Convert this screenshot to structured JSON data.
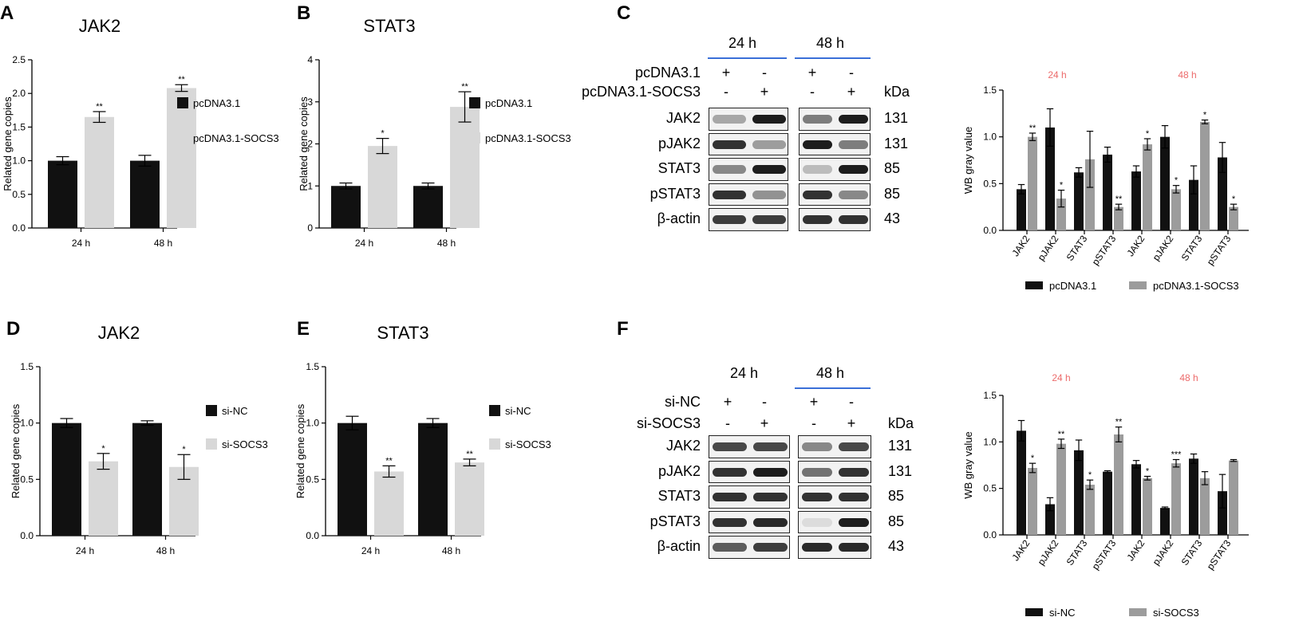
{
  "colors": {
    "black_bar": "#111111",
    "light_bar": "#d8d8d8",
    "wb_gray_bar": "#9c9c9c",
    "header_red": "#ec6b6b",
    "time_line": "#3a6fd8"
  },
  "panels": {
    "A": {
      "label": "A",
      "title": "JAK2",
      "ylabel": "Related gene copies",
      "yticks": [
        "0.0",
        "0.5",
        "1.0",
        "1.5",
        "2.0",
        "2.5"
      ],
      "ylim": [
        0,
        2.5
      ],
      "categories": [
        "24 h",
        "48 h"
      ],
      "legend": [
        "pcDNA3.1",
        "pcDNA3.1-SOCS3"
      ]
    },
    "B": {
      "label": "B",
      "title": "STAT3",
      "ylabel": "Related gene copies",
      "yticks": [
        "0",
        "1",
        "2",
        "3",
        "4"
      ],
      "ylim": [
        0,
        4
      ],
      "categories": [
        "24 h",
        "48 h"
      ],
      "legend": [
        "pcDNA3.1",
        "pcDNA3.1-SOCS3"
      ]
    },
    "D": {
      "label": "D",
      "title": "JAK2",
      "ylabel": "Related gene copies",
      "yticks": [
        "0.0",
        "0.5",
        "1.0",
        "1.5"
      ],
      "ylim": [
        0,
        1.5
      ],
      "categories": [
        "24 h",
        "48 h"
      ],
      "legend": [
        "si-NC",
        "si-SOCS3"
      ]
    },
    "E": {
      "label": "E",
      "title": "STAT3",
      "ylabel": "Related gene copies",
      "yticks": [
        "0.0",
        "0.5",
        "1.0",
        "1.5"
      ],
      "ylim": [
        0,
        1.5
      ],
      "categories": [
        "24 h",
        "48 h"
      ],
      "legend": [
        "si-NC",
        "si-SOCS3"
      ]
    },
    "C": {
      "label": "C",
      "ylabel": "WB gray value",
      "yticks": [
        "0.0",
        "0.5",
        "1.0",
        "1.5"
      ],
      "ylim": [
        0,
        1.5
      ],
      "header": [
        "24 h",
        "48 h"
      ],
      "categories": [
        "JAK2",
        "pJAK2",
        "STAT3",
        "pSTAT3",
        "JAK2",
        "pJAK2",
        "STAT3",
        "pSTAT3"
      ],
      "legend": [
        "pcDNA3.1",
        "pcDNA3.1-SOCS3"
      ]
    },
    "F": {
      "label": "F",
      "ylabel": "WB gray value",
      "yticks": [
        "0.0",
        "0.5",
        "1.0",
        "1.5"
      ],
      "ylim": [
        0,
        1.5
      ],
      "header": [
        "24 h",
        "48 h"
      ],
      "categories": [
        "JAK2",
        "pJAK2",
        "STAT3",
        "pSTAT3",
        "JAK2",
        "pJAK2",
        "STAT3",
        "pSTAT3"
      ],
      "legend": [
        "si-NC",
        "si-SOCS3"
      ]
    }
  },
  "chart_data": [
    {
      "panel": "A",
      "type": "bar",
      "title": "JAK2",
      "ylabel": "Related gene copies",
      "ylim": [
        0,
        2.5
      ],
      "categories": [
        "24 h",
        "48 h"
      ],
      "series": [
        {
          "name": "pcDNA3.1",
          "values": [
            1.0,
            1.0
          ],
          "errors": [
            0.06,
            0.08
          ]
        },
        {
          "name": "pcDNA3.1-SOCS3",
          "values": [
            1.65,
            2.08
          ],
          "errors": [
            0.08,
            0.05
          ]
        }
      ],
      "annotations": [
        [
          "",
          "**"
        ],
        [
          "",
          "**"
        ]
      ]
    },
    {
      "panel": "B",
      "type": "bar",
      "title": "STAT3",
      "ylabel": "Related gene copies",
      "ylim": [
        0,
        4
      ],
      "categories": [
        "24 h",
        "48 h"
      ],
      "series": [
        {
          "name": "pcDNA3.1",
          "values": [
            1.0,
            1.0
          ],
          "errors": [
            0.07,
            0.07
          ]
        },
        {
          "name": "pcDNA3.1-SOCS3",
          "values": [
            1.95,
            2.88
          ],
          "errors": [
            0.18,
            0.36
          ]
        }
      ],
      "annotations": [
        [
          "",
          "*"
        ],
        [
          "",
          "**"
        ]
      ]
    },
    {
      "panel": "C",
      "type": "bar",
      "ylabel": "WB gray value",
      "ylim": [
        0,
        1.5
      ],
      "categories": [
        "JAK2",
        "pJAK2",
        "STAT3",
        "pSTAT3",
        "JAK2",
        "pJAK2",
        "STAT3",
        "pSTAT3"
      ],
      "series": [
        {
          "name": "pcDNA3.1",
          "values": [
            0.44,
            1.1,
            0.62,
            0.81,
            0.63,
            1.0,
            0.54,
            0.78
          ],
          "errors": [
            0.05,
            0.2,
            0.05,
            0.08,
            0.06,
            0.12,
            0.15,
            0.16
          ]
        },
        {
          "name": "pcDNA3.1-SOCS3",
          "values": [
            1.0,
            0.34,
            0.76,
            0.25,
            0.92,
            0.44,
            1.16,
            0.25
          ],
          "errors": [
            0.04,
            0.09,
            0.3,
            0.03,
            0.06,
            0.04,
            0.02,
            0.03
          ]
        }
      ],
      "annotations": [
        [
          "",
          "**"
        ],
        [
          "",
          "*"
        ],
        [
          "",
          ""
        ],
        [
          "",
          "**"
        ],
        [
          "",
          "*"
        ],
        [
          "",
          "*"
        ],
        [
          "",
          "*"
        ],
        [
          "",
          "*"
        ]
      ]
    },
    {
      "panel": "D",
      "type": "bar",
      "title": "JAK2",
      "ylabel": "Related gene copies",
      "ylim": [
        0,
        1.5
      ],
      "categories": [
        "24 h",
        "48 h"
      ],
      "series": [
        {
          "name": "si-NC",
          "values": [
            1.0,
            1.0
          ],
          "errors": [
            0.04,
            0.02
          ]
        },
        {
          "name": "si-SOCS3",
          "values": [
            0.66,
            0.61
          ],
          "errors": [
            0.07,
            0.11
          ]
        }
      ],
      "annotations": [
        [
          "",
          "*"
        ],
        [
          "",
          "*"
        ]
      ]
    },
    {
      "panel": "E",
      "type": "bar",
      "title": "STAT3",
      "ylabel": "Related gene copies",
      "ylim": [
        0,
        1.5
      ],
      "categories": [
        "24 h",
        "48 h"
      ],
      "series": [
        {
          "name": "si-NC",
          "values": [
            1.0,
            1.0
          ],
          "errors": [
            0.06,
            0.04
          ]
        },
        {
          "name": "si-SOCS3",
          "values": [
            0.57,
            0.65
          ],
          "errors": [
            0.05,
            0.03
          ]
        }
      ],
      "annotations": [
        [
          "",
          "**"
        ],
        [
          "",
          "**"
        ]
      ]
    },
    {
      "panel": "F",
      "type": "bar",
      "ylabel": "WB gray value",
      "ylim": [
        0,
        1.5
      ],
      "categories": [
        "JAK2",
        "pJAK2",
        "STAT3",
        "pSTAT3",
        "JAK2",
        "pJAK2",
        "STAT3",
        "pSTAT3"
      ],
      "series": [
        {
          "name": "si-NC",
          "values": [
            1.12,
            0.33,
            0.91,
            0.68,
            0.76,
            0.29,
            0.82,
            0.47
          ],
          "errors": [
            0.11,
            0.07,
            0.11,
            0.01,
            0.04,
            0.01,
            0.05,
            0.18
          ]
        },
        {
          "name": "si-SOCS3",
          "values": [
            0.72,
            0.98,
            0.54,
            1.08,
            0.61,
            0.77,
            0.61,
            0.8
          ],
          "errors": [
            0.05,
            0.05,
            0.05,
            0.08,
            0.02,
            0.04,
            0.07,
            0.01
          ]
        }
      ],
      "annotations": [
        [
          "",
          "*"
        ],
        [
          "",
          "**"
        ],
        [
          "",
          "*"
        ],
        [
          "",
          "**"
        ],
        [
          "",
          "*"
        ],
        [
          "",
          "***"
        ],
        [
          "",
          ""
        ],
        [
          "",
          ""
        ]
      ]
    }
  ],
  "western_blots": {
    "C": {
      "times": [
        "24 h",
        "48 h"
      ],
      "conditions": [
        {
          "label": "pcDNA3.1",
          "signs": [
            "+",
            "-",
            "+",
            "-"
          ]
        },
        {
          "label": "pcDNA3.1-SOCS3",
          "signs": [
            "-",
            "+",
            "-",
            "+"
          ]
        }
      ],
      "kda_label": "kDa",
      "rows": [
        {
          "protein": "JAK2",
          "kda": "131"
        },
        {
          "protein": "pJAK2",
          "kda": "131"
        },
        {
          "protein": "STAT3",
          "kda": "85"
        },
        {
          "protein": "pSTAT3",
          "kda": "85"
        },
        {
          "protein": "β-actin",
          "kda": "43"
        }
      ]
    },
    "F": {
      "times": [
        "24 h",
        "48 h"
      ],
      "conditions": [
        {
          "label": "si-NC",
          "signs": [
            "+",
            "-",
            "+",
            "-"
          ]
        },
        {
          "label": "si-SOCS3",
          "signs": [
            "-",
            "+",
            "-",
            "+"
          ]
        }
      ],
      "kda_label": "kDa",
      "rows": [
        {
          "protein": "JAK2",
          "kda": "131"
        },
        {
          "protein": "pJAK2",
          "kda": "131"
        },
        {
          "protein": "STAT3",
          "kda": "85"
        },
        {
          "protein": "pSTAT3",
          "kda": "85"
        },
        {
          "protein": "β-actin",
          "kda": "43"
        }
      ]
    }
  }
}
